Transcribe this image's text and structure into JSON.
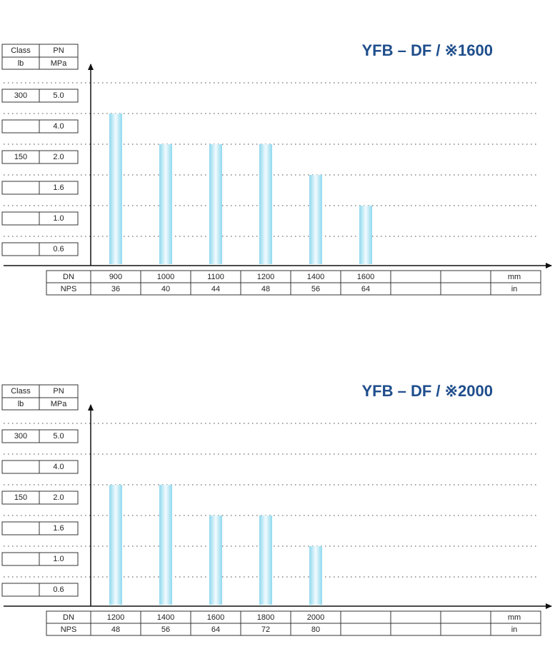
{
  "chart_data": [
    {
      "type": "bar",
      "title": "YFB – DF / ※1600",
      "y_header": {
        "class": "Class",
        "pn": "PN",
        "class_unit": "lb",
        "pn_unit": "MPa"
      },
      "yticks": [
        0.6,
        {
          "value": 1,
          "label": "1.0"
        },
        1.6,
        {
          "value": 2,
          "label": "2.0"
        },
        {
          "value": 4,
          "label": "4.0"
        },
        {
          "value": 5,
          "label": "5.0"
        }
      ],
      "class_ticks": [
        {
          "value": 2,
          "label": "150"
        },
        {
          "value": 5,
          "label": "300"
        }
      ],
      "x_label": "DN",
      "x_unit": "mm",
      "x2_label": "NPS",
      "x2_unit": "in",
      "categories": [
        "900",
        "1000",
        "1100",
        "1200",
        "1400",
        "1600"
      ],
      "categories2": [
        "36",
        "40",
        "44",
        "48",
        "56",
        "64"
      ],
      "values": [
        4,
        2,
        2,
        2,
        1.6,
        1
      ],
      "color": "#8fd8ee",
      "grid": true
    },
    {
      "type": "bar",
      "title": "YFB – DF / ※2000",
      "y_header": {
        "class": "Class",
        "pn": "PN",
        "class_unit": "lb",
        "pn_unit": "MPa"
      },
      "yticks": [
        0.6,
        {
          "value": 1,
          "label": "1.0"
        },
        1.6,
        {
          "value": 2,
          "label": "2.0"
        },
        {
          "value": 4,
          "label": "4.0"
        },
        {
          "value": 5,
          "label": "5.0"
        }
      ],
      "class_ticks": [
        {
          "value": 2,
          "label": "150"
        },
        {
          "value": 5,
          "label": "300"
        }
      ],
      "x_label": "DN",
      "x_unit": "mm",
      "x2_label": "NPS",
      "x2_unit": "in",
      "categories": [
        "1200",
        "1400",
        "1600",
        "1800",
        "2000"
      ],
      "categories2": [
        "48",
        "56",
        "64",
        "72",
        "80"
      ],
      "values": [
        2,
        2,
        1.6,
        1.6,
        1
      ],
      "color": "#8fd8ee",
      "grid": true
    }
  ]
}
